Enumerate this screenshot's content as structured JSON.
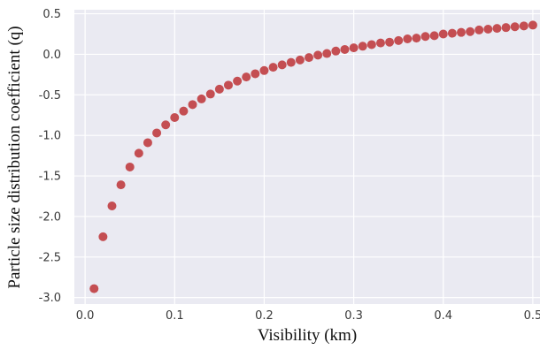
{
  "chart_data": {
    "type": "scatter",
    "title": "",
    "xlabel": "Visibility (km)",
    "ylabel": "Particle size distribution coefficient (q)",
    "xlim": [
      -0.012,
      0.508
    ],
    "ylim": [
      -3.08,
      0.55
    ],
    "xticks": [
      0.0,
      0.1,
      0.2,
      0.3,
      0.4,
      0.5
    ],
    "xtick_labels": [
      "0.0",
      "0.1",
      "0.2",
      "0.3",
      "0.4",
      "0.5"
    ],
    "yticks": [
      0.5,
      0.0,
      -0.5,
      -1.0,
      -1.5,
      -2.0,
      -2.5,
      -3.0
    ],
    "ytick_labels": [
      "0.5",
      "0.0",
      "-0.5",
      "-1.0",
      "-1.5",
      "-2.0",
      "-2.5",
      "-3.0"
    ],
    "grid": true,
    "background": "#eaeaf2",
    "grid_color": "#ffffff",
    "marker_color": "#c44e52",
    "series": [
      {
        "x": [
          0.01,
          0.02,
          0.03,
          0.04,
          0.05,
          0.06,
          0.07,
          0.08,
          0.09,
          0.1,
          0.11,
          0.12,
          0.13,
          0.14,
          0.15,
          0.16,
          0.17,
          0.18,
          0.19,
          0.2,
          0.21,
          0.22,
          0.23,
          0.24,
          0.25,
          0.26,
          0.27,
          0.28,
          0.29,
          0.3,
          0.31,
          0.32,
          0.33,
          0.34,
          0.35,
          0.36,
          0.37,
          0.38,
          0.39,
          0.4,
          0.41,
          0.42,
          0.43,
          0.44,
          0.45,
          0.46,
          0.47,
          0.48,
          0.49,
          0.5
        ],
        "y": [
          -2.89,
          -2.25,
          -1.87,
          -1.61,
          -1.39,
          -1.22,
          -1.09,
          -0.97,
          -0.87,
          -0.78,
          -0.7,
          -0.62,
          -0.55,
          -0.49,
          -0.43,
          -0.38,
          -0.33,
          -0.28,
          -0.24,
          -0.2,
          -0.16,
          -0.13,
          -0.1,
          -0.07,
          -0.04,
          -0.01,
          0.01,
          0.04,
          0.06,
          0.08,
          0.1,
          0.12,
          0.14,
          0.15,
          0.17,
          0.19,
          0.2,
          0.22,
          0.23,
          0.25,
          0.26,
          0.27,
          0.28,
          0.3,
          0.31,
          0.32,
          0.33,
          0.34,
          0.35,
          0.36
        ]
      }
    ]
  }
}
